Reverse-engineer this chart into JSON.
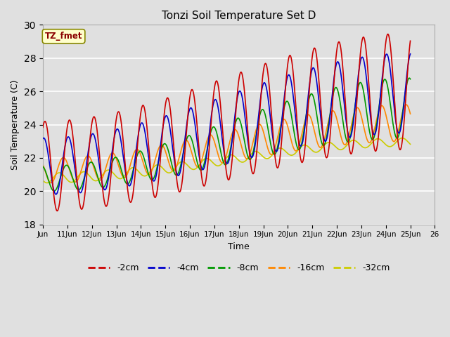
{
  "title": "Tonzi Soil Temperature Set D",
  "xlabel": "Time",
  "ylabel": "Soil Temperature (C)",
  "ylim": [
    18,
    30
  ],
  "xlim": [
    0,
    360
  ],
  "fig_width": 6.4,
  "fig_height": 4.8,
  "dpi": 100,
  "background_color": "#e0e0e0",
  "plot_bg_color": "#e0e0e0",
  "grid_color": "#ffffff",
  "lines": {
    "-2cm": {
      "color": "#cc0000",
      "lw": 1.2
    },
    "-4cm": {
      "color": "#0000cc",
      "lw": 1.2
    },
    "-8cm": {
      "color": "#009900",
      "lw": 1.2
    },
    "-16cm": {
      "color": "#ff8800",
      "lw": 1.2
    },
    "-32cm": {
      "color": "#cccc00",
      "lw": 1.2
    }
  },
  "legend_label": "TZ_fmet",
  "xtick_labels": [
    "Jun",
    "11Jun",
    "12Jun",
    "13Jun",
    "14Jun",
    "15Jun",
    "16Jun",
    "17Jun",
    "18Jun",
    "19Jun",
    "20Jun",
    "21Jun",
    "22Jun",
    "23Jun",
    "24Jun",
    "25Jun",
    "26"
  ],
  "xtick_positions": [
    0,
    24,
    48,
    72,
    96,
    120,
    144,
    168,
    192,
    216,
    240,
    264,
    288,
    312,
    336,
    360,
    384
  ],
  "hours_total": 360,
  "base_min_2cm": 18.8,
  "base_max_2cm": 24.2,
  "final_min_2cm": 22.5,
  "final_max_2cm": 29.5,
  "base_min_4cm": 19.8,
  "base_max_4cm": 23.2,
  "final_min_4cm": 23.5,
  "final_max_4cm": 28.3,
  "base_min_8cm": 20.0,
  "base_max_8cm": 21.5,
  "final_min_8cm": 23.2,
  "final_max_8cm": 26.8,
  "base_min_16cm": 20.5,
  "base_max_16cm": 22.0,
  "final_min_16cm": 23.0,
  "final_max_16cm": 25.2,
  "base_min_32cm": 20.5,
  "base_max_32cm": 21.1,
  "final_min_32cm": 22.7,
  "final_max_32cm": 23.2,
  "trend_days": 15,
  "phase_shift_2cm": 0.0,
  "phase_shift_4cm": 1.2,
  "phase_shift_8cm": 3.0,
  "phase_shift_16cm": 6.0,
  "phase_shift_32cm": 10.0,
  "peak_hour": 14
}
